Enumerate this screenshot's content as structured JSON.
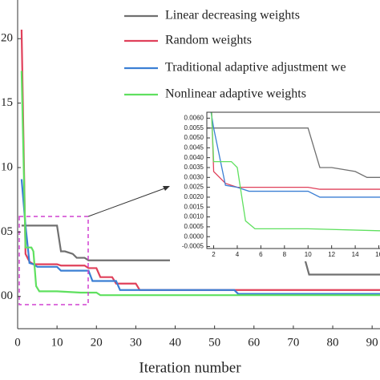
{
  "chart_data": {
    "type": "line",
    "xlabel": "Iteration number",
    "xlim": [
      0,
      92
    ],
    "xticks": [
      0,
      10,
      20,
      30,
      40,
      50,
      60,
      70,
      80,
      90
    ],
    "ylim": [
      -0.0025,
      0.023
    ],
    "yticks": [
      {
        "value": 0,
        "label": "00"
      },
      {
        "value": 0.005,
        "label": "05"
      },
      {
        "value": 0.01,
        "label": "10"
      },
      {
        "value": 0.015,
        "label": "15"
      },
      {
        "value": 0.02,
        "label": "20"
      }
    ],
    "legend": "upper right",
    "series": [
      {
        "name": "Linear decreasing weights",
        "color": "#707070",
        "x": [
          1,
          10,
          11,
          12,
          14,
          15,
          17,
          18,
          73,
          74,
          92
        ],
        "values": [
          0.0055,
          0.0055,
          0.0035,
          0.0035,
          0.0033,
          0.003,
          0.003,
          0.0028,
          0.0028,
          0.0017,
          0.0017
        ]
      },
      {
        "name": "Random weights",
        "color": "#e0405a",
        "x": [
          1,
          2,
          3,
          4,
          10,
          11,
          17,
          18,
          20,
          21,
          24,
          25,
          30,
          31,
          92
        ],
        "values": [
          0.0207,
          0.0033,
          0.0027,
          0.0025,
          0.0025,
          0.0024,
          0.0024,
          0.0022,
          0.0022,
          0.0015,
          0.0015,
          0.001,
          0.001,
          0.0005,
          0.0005
        ]
      },
      {
        "name": "Traditional adaptive adjustment we",
        "color": "#3b7fd4",
        "x": [
          1,
          2,
          3,
          4,
          5,
          10,
          11,
          18,
          19,
          25,
          26,
          55,
          56,
          92
        ],
        "values": [
          0.0091,
          0.0055,
          0.0026,
          0.0025,
          0.0023,
          0.0023,
          0.002,
          0.002,
          0.0012,
          0.0012,
          0.0005,
          0.0005,
          0.0002,
          0.0002
        ]
      },
      {
        "name": "Nonlinear adaptive weights",
        "color": "#5fe05f",
        "x": [
          1,
          2,
          3.5,
          4,
          4.7,
          5.5,
          10,
          16,
          20,
          21,
          92
        ],
        "values": [
          0.0175,
          0.0038,
          0.0038,
          0.0035,
          0.0008,
          0.0004,
          0.0004,
          0.0003,
          0.0003,
          0.0001,
          0.0001
        ]
      }
    ],
    "inset": {
      "xlim": [
        1.42,
        16.1
      ],
      "xticks": [
        2,
        4,
        6,
        8,
        10,
        12,
        14,
        16
      ],
      "ylim": [
        -0.0006,
        0.0063
      ],
      "yticks": [
        {
          "value": 0.006,
          "label": "0.0060"
        },
        {
          "value": 0.0055,
          "label": "0.0055"
        },
        {
          "value": 0.005,
          "label": "0.0050"
        },
        {
          "value": 0.0045,
          "label": "0.0045"
        },
        {
          "value": 0.004,
          "label": "0.0040"
        },
        {
          "value": 0.0035,
          "label": "0.0035"
        },
        {
          "value": 0.003,
          "label": "0.0030"
        },
        {
          "value": 0.0025,
          "label": "0.0025"
        },
        {
          "value": 0.002,
          "label": "0.0020"
        },
        {
          "value": 0.0015,
          "label": "0.0015"
        },
        {
          "value": 0.001,
          "label": "0.0010"
        },
        {
          "value": 0.0005,
          "label": "0.0005"
        },
        {
          "value": 0,
          "label": "0.0000"
        },
        {
          "value": -0.0005,
          "label": "-0.0005"
        }
      ]
    }
  }
}
